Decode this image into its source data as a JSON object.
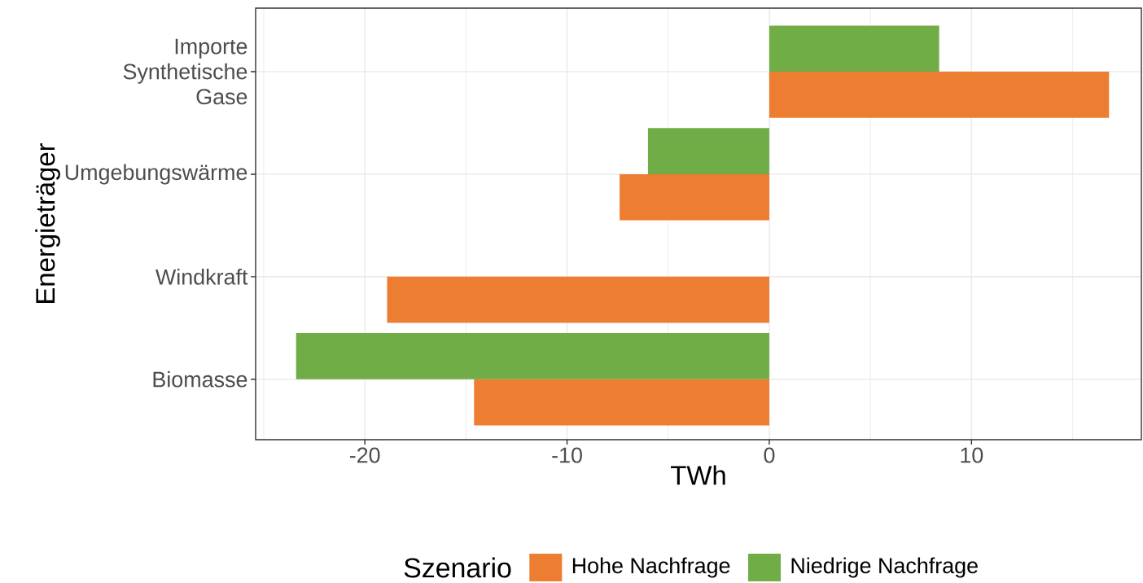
{
  "chart_data": {
    "type": "bar",
    "orientation": "horizontal",
    "categories": [
      "Importe Synthetische Gase",
      "Umgebungswärme",
      "Windkraft",
      "Biomasse"
    ],
    "series": [
      {
        "name": "Hohe Nachfrage",
        "color": "#ed7d31",
        "values": [
          16.8,
          -7.4,
          -18.9,
          -14.6
        ]
      },
      {
        "name": "Niedrige Nachfrage",
        "color": "#70ad47",
        "values": [
          8.4,
          -6.0,
          null,
          -23.4
        ]
      }
    ],
    "xlabel": "TWh",
    "ylabel": "Energieträger",
    "legend_title": "Szenario",
    "legend": "bottom",
    "xlim": [
      -25.4,
      18.4
    ],
    "xticks": [
      -20,
      -10,
      0,
      10
    ],
    "grid": true
  }
}
